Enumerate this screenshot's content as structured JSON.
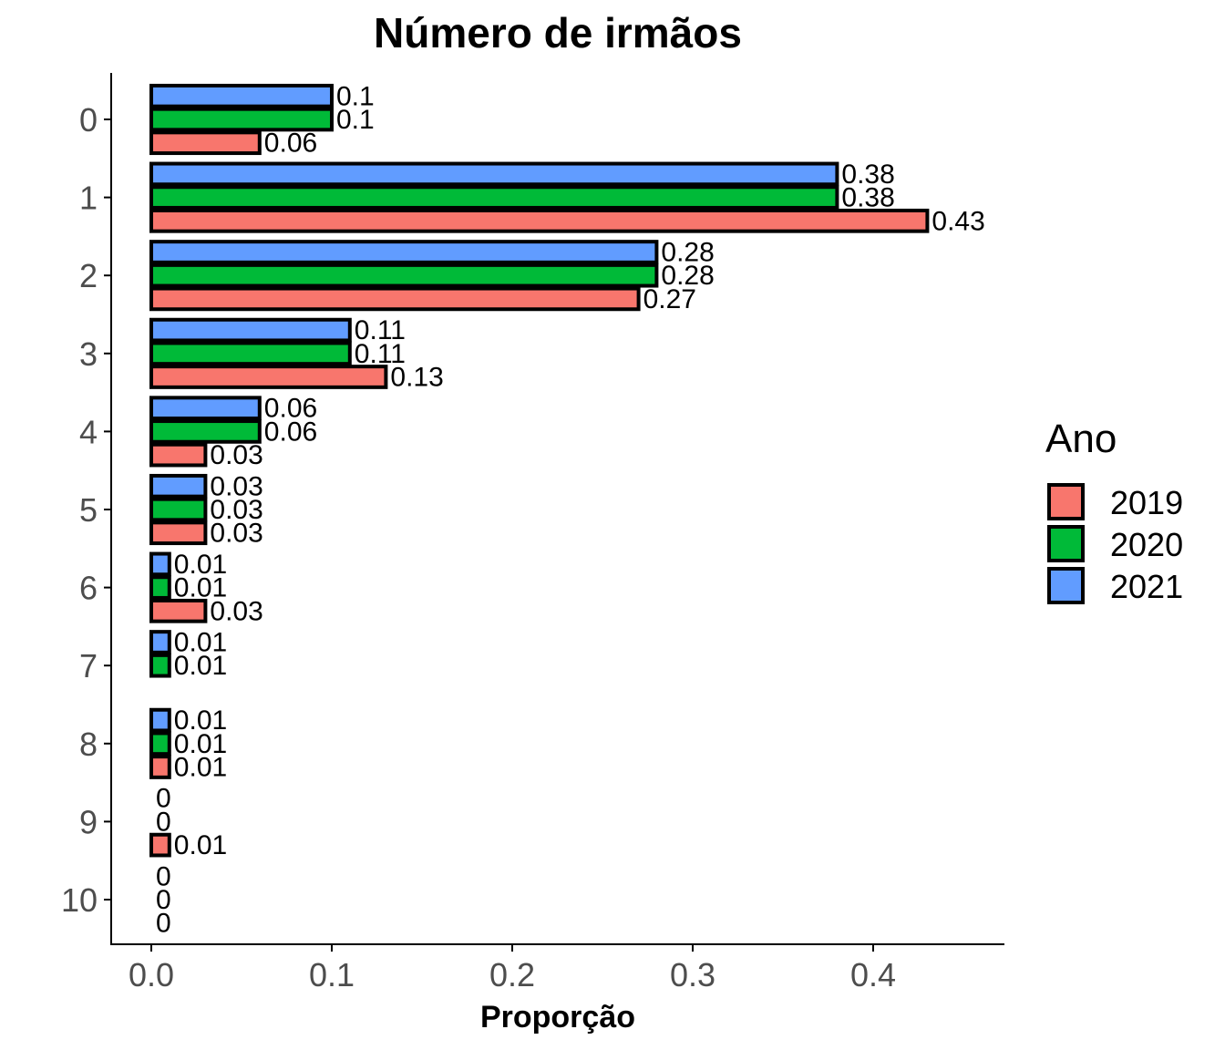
{
  "chart_data": {
    "type": "bar",
    "orientation": "horizontal",
    "title": "Número de irmãos",
    "xlabel": "Proporção",
    "ylabel": "",
    "xlim": [
      0,
      0.47
    ],
    "x_ticks": [
      "0.0",
      "0.1",
      "0.2",
      "0.3",
      "0.4"
    ],
    "x_tick_values": [
      0,
      0.1,
      0.2,
      0.3,
      0.4
    ],
    "categories": [
      "0",
      "1",
      "2",
      "3",
      "4",
      "5",
      "6",
      "7",
      "8",
      "9",
      "10"
    ],
    "grid": false,
    "legend": {
      "title": "Ano",
      "placement": "right"
    },
    "series": [
      {
        "name": "2019",
        "color": "#F8766D",
        "values": [
          0.06,
          0.43,
          0.27,
          0.13,
          0.03,
          0.03,
          0.03,
          null,
          0.01,
          0.01,
          0
        ],
        "labels": [
          "0.06",
          "0.43",
          "0.27",
          "0.13",
          "0.03",
          "0.03",
          "0.03",
          null,
          "0.01",
          "0.01",
          "0"
        ]
      },
      {
        "name": "2020",
        "color": "#00BA38",
        "values": [
          0.1,
          0.38,
          0.28,
          0.11,
          0.06,
          0.03,
          0.01,
          0.01,
          0.01,
          0,
          0
        ],
        "labels": [
          "0.1",
          "0.38",
          "0.28",
          "0.11",
          "0.06",
          "0.03",
          "0.01",
          "0.01",
          "0.01",
          "0",
          "0"
        ]
      },
      {
        "name": "2021",
        "color": "#619CFF",
        "values": [
          0.1,
          0.38,
          0.28,
          0.11,
          0.06,
          0.03,
          0.01,
          0.01,
          0.01,
          0,
          0
        ],
        "labels": [
          "0.1",
          "0.38",
          "0.28",
          "0.11",
          "0.06",
          "0.03",
          "0.01",
          "0.01",
          "0.01",
          "0",
          "0"
        ]
      }
    ]
  }
}
